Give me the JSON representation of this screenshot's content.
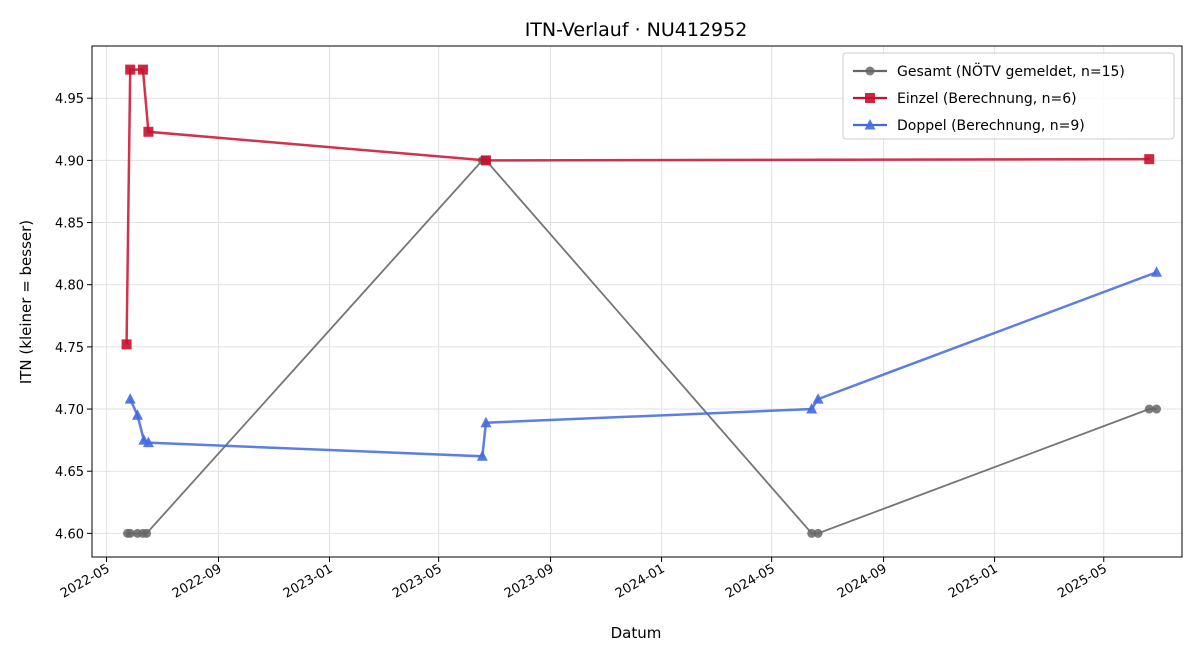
{
  "chart_data": {
    "type": "line",
    "title": "ITN-Verlauf · NU412952",
    "xlabel": "Datum",
    "ylabel": "ITN  (kleiner = besser)",
    "x_axis_type": "date",
    "xlim": [
      "2022-04-15",
      "2025-07-26"
    ],
    "ylim": [
      4.581,
      4.992
    ],
    "x_ticks": [
      "2022-05",
      "2022-09",
      "2023-01",
      "2023-05",
      "2023-09",
      "2024-01",
      "2024-05",
      "2024-09",
      "2025-01",
      "2025-05"
    ],
    "y_ticks": [
      4.6,
      4.65,
      4.7,
      4.75,
      4.8,
      4.85,
      4.9,
      4.95
    ],
    "y_tick_labels": [
      "4.60",
      "4.65",
      "4.70",
      "4.75",
      "4.80",
      "4.85",
      "4.90",
      "4.95"
    ],
    "grid": true,
    "legend_position": "top-right",
    "series": [
      {
        "name": "Gesamt (NÖTV gemeldet, n=15)",
        "color": "#666666",
        "marker": "circle",
        "points": [
          {
            "x": "2022-05-24",
            "y": 4.6
          },
          {
            "x": "2022-05-27",
            "y": 4.6
          },
          {
            "x": "2022-06-04",
            "y": 4.6
          },
          {
            "x": "2022-06-10",
            "y": 4.6
          },
          {
            "x": "2022-06-14",
            "y": 4.6
          },
          {
            "x": "2023-06-18",
            "y": 4.9
          },
          {
            "x": "2023-06-22",
            "y": 4.9
          },
          {
            "x": "2024-06-14",
            "y": 4.6
          },
          {
            "x": "2024-06-21",
            "y": 4.6
          },
          {
            "x": "2025-06-20",
            "y": 4.7
          },
          {
            "x": "2025-06-28",
            "y": 4.7
          }
        ]
      },
      {
        "name": "Einzel (Berechnung, n=6)",
        "color": "#c8102e",
        "marker": "square",
        "points": [
          {
            "x": "2022-05-23",
            "y": 4.752
          },
          {
            "x": "2022-05-27",
            "y": 4.973
          },
          {
            "x": "2022-06-10",
            "y": 4.973
          },
          {
            "x": "2022-06-16",
            "y": 4.923
          },
          {
            "x": "2023-06-22",
            "y": 4.9
          },
          {
            "x": "2025-06-20",
            "y": 4.901
          }
        ]
      },
      {
        "name": "Doppel (Berechnung, n=9)",
        "color": "#4169e1",
        "marker": "triangle",
        "points": [
          {
            "x": "2022-05-27",
            "y": 4.708
          },
          {
            "x": "2022-06-04",
            "y": 4.695
          },
          {
            "x": "2022-06-11",
            "y": 4.675
          },
          {
            "x": "2022-06-16",
            "y": 4.673
          },
          {
            "x": "2023-06-18",
            "y": 4.662
          },
          {
            "x": "2023-06-22",
            "y": 4.689
          },
          {
            "x": "2024-06-14",
            "y": 4.7
          },
          {
            "x": "2024-06-21",
            "y": 4.708
          },
          {
            "x": "2025-06-28",
            "y": 4.81
          }
        ]
      }
    ]
  }
}
